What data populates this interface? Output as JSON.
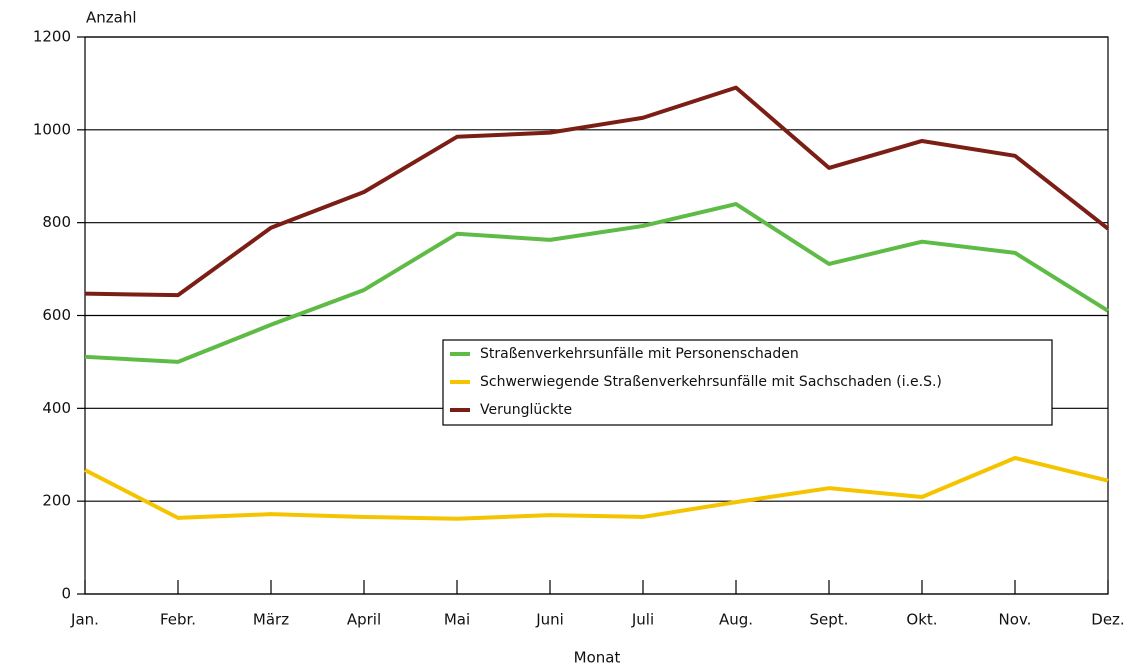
{
  "chart_data": {
    "type": "line",
    "y_label": "Anzahl",
    "x_label": "Monat",
    "categories": [
      "Jan.",
      "Febr.",
      "März",
      "April",
      "Mai",
      "Juni",
      "Juli",
      "Aug.",
      "Sept.",
      "Okt.",
      "Nov.",
      "Dez."
    ],
    "series": [
      {
        "name": "Straßenverkehrsunfälle mit Personenschaden",
        "color": "#5dbb46",
        "values": [
          511,
          500,
          580,
          655,
          776,
          763,
          793,
          840,
          711,
          759,
          735,
          610
        ]
      },
      {
        "name": "Schwerwiegende Straßenverkehrsunfälle mit Sachschaden (i.e.S.)",
        "color": "#f5c400",
        "values": [
          267,
          164,
          172,
          166,
          162,
          170,
          166,
          198,
          228,
          209,
          293,
          244
        ]
      },
      {
        "name": "Verunglückte",
        "color": "#7b1e16",
        "values": [
          647,
          644,
          789,
          866,
          985,
          994,
          1026,
          1091,
          918,
          976,
          944,
          787
        ]
      }
    ],
    "ylim": [
      0,
      1200
    ],
    "yticks": [
      0,
      200,
      400,
      600,
      800,
      1000,
      1200
    ],
    "grid": true
  }
}
